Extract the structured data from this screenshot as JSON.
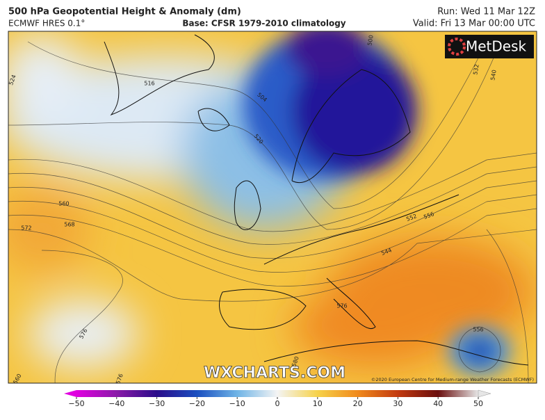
{
  "header": {
    "title": "500 hPa Geopotential Height & Anomaly (dm)",
    "model": "ECMWF HRES 0.1°",
    "base": "Base: CFSR 1979-2010 climatology",
    "run": "Run: Wed 11 Mar 12Z",
    "valid": "Valid: Fri 13 Mar 00:00 UTC"
  },
  "map": {
    "logo": "MetDesk",
    "watermark": "WXCHARTS.COM",
    "copyright": "©2020 European Centre for Medium-range Weather Forecasts (ECMWF)",
    "contour_labels": [
      "524",
      "516",
      "504",
      "520",
      "500",
      "532",
      "540",
      "560",
      "568",
      "572",
      "552",
      "556",
      "544",
      "576",
      "576",
      "556",
      "580",
      "576",
      "560"
    ]
  },
  "colorbar": {
    "lim": [
      -50,
      50
    ],
    "ticks": [
      {
        "value": -50,
        "label": "−50"
      },
      {
        "value": -40,
        "label": "−40"
      },
      {
        "value": -30,
        "label": "−30"
      },
      {
        "value": -20,
        "label": "−20"
      },
      {
        "value": -10,
        "label": "−10"
      },
      0,
      10,
      20,
      30,
      40,
      50
    ]
  }
}
